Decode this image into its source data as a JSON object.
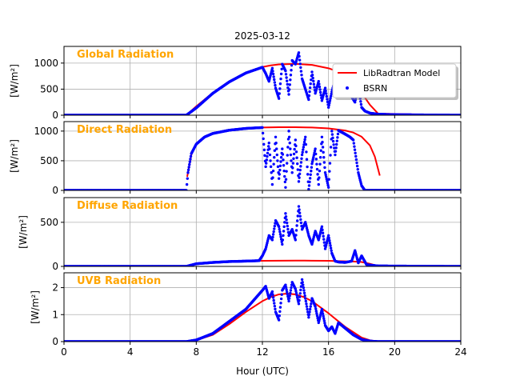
{
  "figure": {
    "title": "2025-03-12",
    "xlabel": "Hour (UTC)",
    "legend": {
      "model": "LibRadtran Model",
      "obs": "BSRN",
      "placement": "top-right of first panel"
    }
  },
  "colors": {
    "model": "#ff0000",
    "obs": "#0000ff",
    "panel_title": "#ffa500",
    "grid": "#b0b0b0"
  },
  "chart_data": [
    {
      "type": "line+scatter",
      "panel_title": "Global Radiation",
      "ylabel": "[W/m²]",
      "xlim": [
        0,
        24
      ],
      "ylim": [
        0,
        1320
      ],
      "xticks": [
        0,
        4,
        8,
        12,
        16,
        20,
        24
      ],
      "yticks": [
        0,
        500,
        1000
      ],
      "grid": true,
      "series": [
        {
          "name": "LibRadtran Model",
          "kind": "line",
          "x": [
            0,
            7.4,
            8,
            9,
            10,
            11,
            12,
            12.5,
            13,
            14,
            15,
            16,
            16.5,
            17,
            17.5,
            18,
            18.5,
            19,
            24
          ],
          "y": [
            0,
            0,
            170,
            430,
            640,
            810,
            925,
            955,
            975,
            985,
            965,
            900,
            845,
            765,
            630,
            430,
            200,
            30,
            0
          ]
        },
        {
          "name": "BSRN",
          "kind": "scatter",
          "x": [
            0,
            7.4,
            8,
            9,
            10,
            11,
            12,
            12.2,
            12.4,
            12.6,
            12.8,
            13,
            13.2,
            13.4,
            13.6,
            13.8,
            14,
            14.2,
            14.4,
            14.6,
            14.8,
            15,
            15.2,
            15.4,
            15.6,
            15.8,
            16,
            16.2,
            16.4,
            16.6,
            16.8,
            17,
            17.2,
            17.4,
            17.6,
            17.8,
            18,
            18.2,
            18.5,
            19,
            20,
            24
          ],
          "y": [
            0,
            0,
            140,
            420,
            640,
            810,
            920,
            800,
            650,
            900,
            520,
            320,
            980,
            850,
            400,
            1050,
            980,
            1200,
            700,
            500,
            300,
            830,
            420,
            650,
            280,
            520,
            150,
            450,
            700,
            850,
            380,
            420,
            700,
            350,
            250,
            550,
            150,
            80,
            40,
            20,
            10,
            0
          ]
        }
      ]
    },
    {
      "type": "line+scatter",
      "panel_title": "Direct Radiation",
      "ylabel": "[W/m²]",
      "xlim": [
        0,
        24
      ],
      "ylim": [
        0,
        1160
      ],
      "xticks": [
        0,
        4,
        8,
        12,
        16,
        20,
        24
      ],
      "yticks": [
        0,
        500,
        1000
      ],
      "grid": true,
      "series": [
        {
          "name": "LibRadtran Model",
          "kind": "line",
          "x": [
            7.45,
            7.7,
            8,
            8.5,
            9,
            10,
            11,
            12,
            13,
            14,
            15,
            16,
            17,
            17.5,
            18,
            18.5,
            18.8,
            19.1
          ],
          "y": [
            230,
            600,
            790,
            900,
            960,
            1015,
            1045,
            1060,
            1065,
            1065,
            1060,
            1045,
            1010,
            975,
            905,
            760,
            570,
            250
          ]
        },
        {
          "name": "BSRN",
          "kind": "scatter",
          "x": [
            0,
            7.4,
            7.5,
            7.7,
            8,
            8.5,
            9,
            10,
            11,
            12,
            12.2,
            12.4,
            12.6,
            12.8,
            13,
            13.2,
            13.4,
            13.6,
            13.8,
            14,
            14.2,
            14.4,
            14.6,
            14.8,
            15,
            15.2,
            15.4,
            15.6,
            15.8,
            16,
            16.2,
            16.4,
            16.6,
            16.8,
            17,
            17.3,
            17.5,
            17.8,
            18,
            18.2,
            19,
            24
          ],
          "y": [
            0,
            0,
            300,
            620,
            780,
            900,
            960,
            1015,
            1045,
            1060,
            400,
            800,
            100,
            900,
            200,
            700,
            50,
            1000,
            300,
            850,
            150,
            600,
            900,
            20,
            450,
            700,
            100,
            900,
            300,
            50,
            1000,
            600,
            1010,
            980,
            950,
            900,
            850,
            300,
            80,
            0,
            0,
            0
          ]
        }
      ]
    },
    {
      "type": "line+scatter",
      "panel_title": "Diffuse Radiation",
      "ylabel": "[W/m²]",
      "xlim": [
        0,
        24
      ],
      "ylim": [
        0,
        780
      ],
      "xticks": [
        0,
        4,
        8,
        12,
        16,
        20,
        24
      ],
      "yticks": [
        0,
        500
      ],
      "grid": true,
      "series": [
        {
          "name": "LibRadtran Model",
          "kind": "line",
          "x": [
            0,
            7.4,
            8,
            9,
            10,
            11,
            12,
            13,
            14,
            15,
            16,
            17,
            17.5,
            18,
            18.5,
            19,
            24
          ],
          "y": [
            0,
            0,
            30,
            45,
            55,
            60,
            63,
            65,
            66,
            65,
            63,
            58,
            55,
            50,
            30,
            5,
            0
          ]
        },
        {
          "name": "BSRN",
          "kind": "scatter",
          "x": [
            0,
            7.4,
            8,
            9,
            10,
            11,
            11.8,
            12,
            12.2,
            12.4,
            12.6,
            12.8,
            13,
            13.2,
            13.4,
            13.6,
            13.8,
            14,
            14.2,
            14.4,
            14.6,
            14.8,
            15,
            15.2,
            15.4,
            15.6,
            15.8,
            16,
            16.2,
            16.4,
            16.6,
            17,
            17.4,
            17.6,
            17.8,
            18,
            18.3,
            19,
            24
          ],
          "y": [
            0,
            0,
            30,
            45,
            55,
            60,
            65,
            120,
            200,
            350,
            300,
            520,
            450,
            250,
            600,
            350,
            420,
            300,
            680,
            420,
            500,
            350,
            250,
            400,
            300,
            450,
            200,
            350,
            150,
            60,
            50,
            45,
            60,
            180,
            40,
            120,
            20,
            5,
            0
          ]
        }
      ]
    },
    {
      "type": "line+scatter",
      "panel_title": "UVB Radiation",
      "ylabel": "[W/m²]",
      "xlim": [
        0,
        24
      ],
      "ylim": [
        0,
        2.55
      ],
      "xticks": [
        0,
        4,
        8,
        12,
        16,
        20,
        24
      ],
      "yticks": [
        0,
        1,
        2
      ],
      "grid": true,
      "series": [
        {
          "name": "LibRadtran Model",
          "kind": "line",
          "x": [
            0,
            7.4,
            8,
            9,
            10,
            11,
            12,
            12.5,
            13,
            13.5,
            14,
            14.5,
            15,
            16,
            17,
            18,
            18.5,
            19,
            24
          ],
          "y": [
            0,
            0,
            0.05,
            0.25,
            0.65,
            1.1,
            1.5,
            1.65,
            1.75,
            1.78,
            1.75,
            1.65,
            1.5,
            1.05,
            0.55,
            0.15,
            0.05,
            0,
            0
          ]
        },
        {
          "name": "BSRN",
          "kind": "scatter",
          "x": [
            0,
            7.4,
            8,
            9,
            10,
            11,
            11.5,
            12,
            12.2,
            12.4,
            12.6,
            12.8,
            13,
            13.2,
            13.4,
            13.6,
            13.8,
            14,
            14.2,
            14.4,
            14.6,
            14.8,
            15,
            15.2,
            15.4,
            15.6,
            15.8,
            16,
            16.2,
            16.4,
            16.6,
            17,
            17.5,
            18,
            18.5,
            19,
            24
          ],
          "y": [
            0,
            0,
            0.06,
            0.3,
            0.75,
            1.2,
            1.55,
            1.9,
            2.05,
            1.6,
            1.85,
            1.1,
            0.8,
            1.9,
            2.1,
            1.5,
            2.2,
            1.95,
            1.4,
            2.3,
            1.6,
            0.9,
            1.6,
            1.3,
            0.7,
            1.2,
            0.6,
            0.4,
            0.55,
            0.3,
            0.7,
            0.5,
            0.25,
            0.08,
            0.02,
            0,
            0
          ]
        }
      ]
    }
  ]
}
